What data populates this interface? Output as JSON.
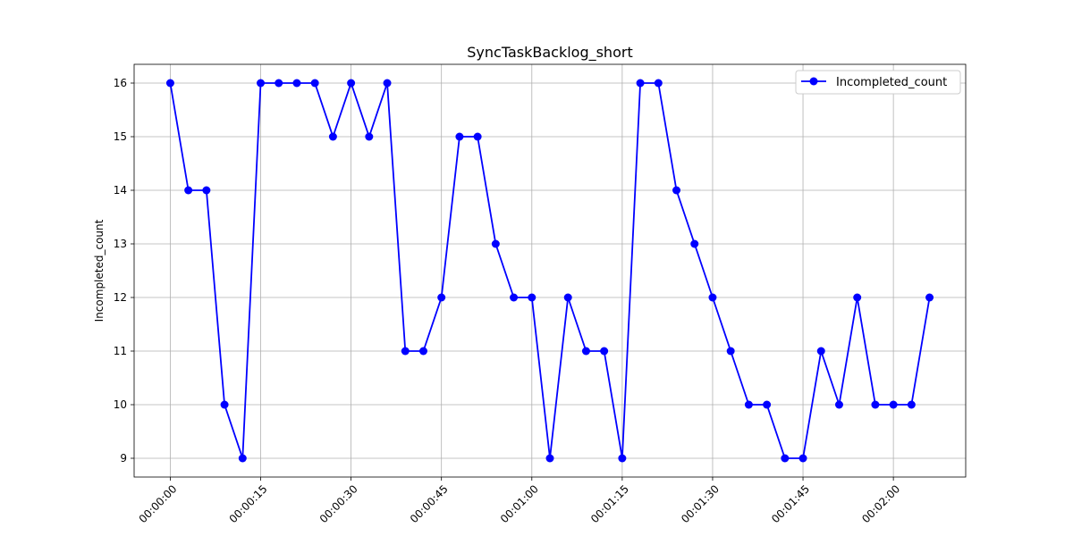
{
  "chart_data": {
    "type": "line",
    "title": "SyncTaskBacklog_short",
    "xlabel": "",
    "ylabel": "Incompleted_count",
    "series": [
      {
        "name": "Incompleted_count",
        "color": "#0000ff",
        "marker": "circle",
        "x": [
          "00:00:00",
          "00:00:03",
          "00:00:06",
          "00:00:09",
          "00:00:12",
          "00:00:15",
          "00:00:18",
          "00:00:21",
          "00:00:24",
          "00:00:27",
          "00:00:30",
          "00:00:33",
          "00:00:36",
          "00:00:39",
          "00:00:42",
          "00:00:45",
          "00:00:48",
          "00:00:51",
          "00:00:54",
          "00:00:57",
          "00:01:00",
          "00:01:03",
          "00:01:06",
          "00:01:09",
          "00:01:12",
          "00:01:15",
          "00:01:18",
          "00:01:21",
          "00:01:24",
          "00:01:27",
          "00:01:30",
          "00:01:33",
          "00:01:36",
          "00:01:39",
          "00:01:42",
          "00:01:45",
          "00:01:48",
          "00:01:51",
          "00:01:54",
          "00:01:57",
          "00:02:00",
          "00:02:03",
          "00:02:06"
        ],
        "values": [
          16,
          14,
          14,
          10,
          9,
          16,
          16,
          16,
          16,
          15,
          16,
          15,
          16,
          11,
          11,
          12,
          15,
          15,
          13,
          12,
          12,
          9,
          12,
          11,
          11,
          9,
          16,
          16,
          14,
          13,
          12,
          11,
          10,
          10,
          9,
          9,
          11,
          10,
          12,
          10,
          10,
          10,
          12
        ]
      }
    ],
    "x_ticks": [
      "00:00:00",
      "00:00:15",
      "00:00:30",
      "00:00:45",
      "00:01:00",
      "00:01:15",
      "00:01:30",
      "00:01:45",
      "00:02:00"
    ],
    "y_ticks": [
      "9",
      "10",
      "11",
      "12",
      "13",
      "14",
      "15",
      "16"
    ],
    "xlim": [
      "-00:00:06",
      "00:02:12"
    ],
    "ylim": [
      8.65,
      16.35
    ],
    "grid": true,
    "legend_position": "top-right"
  }
}
